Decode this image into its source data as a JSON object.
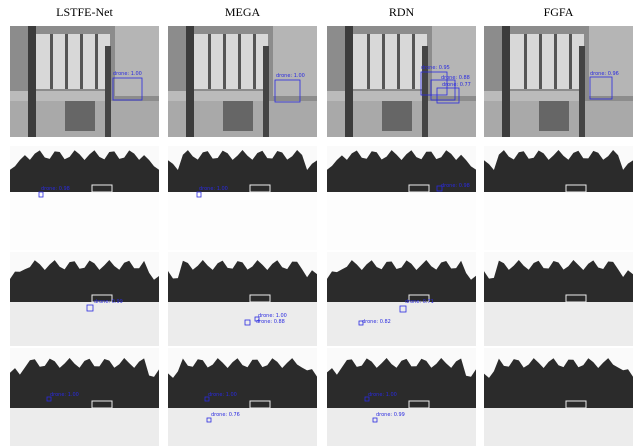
{
  "headers": [
    "LSTFE-Net",
    "MEGA",
    "RDN",
    "FGFA"
  ],
  "rows": [
    [
      [
        "drone: 1.00"
      ],
      [
        "drone: 1.00"
      ],
      [
        "drone: 0.95",
        "drone: 0.88",
        "drone: 0.77"
      ],
      [
        "drone: 0.96"
      ]
    ],
    [
      [
        "drone: 0.98"
      ],
      [
        "drone: 1.00"
      ],
      [
        "drone: 0.98"
      ],
      []
    ],
    [
      [
        "drone: 0.99"
      ],
      [
        "drone: 1.00",
        "drone: 0.88"
      ],
      [
        "drone: 0.71",
        "drone: 0.82"
      ],
      []
    ],
    [
      [
        "drone: 1.00"
      ],
      [
        "drone: 1.00",
        "drone: 0.76"
      ],
      [
        "drone: 1.00",
        "drone: 0.99"
      ],
      []
    ]
  ]
}
